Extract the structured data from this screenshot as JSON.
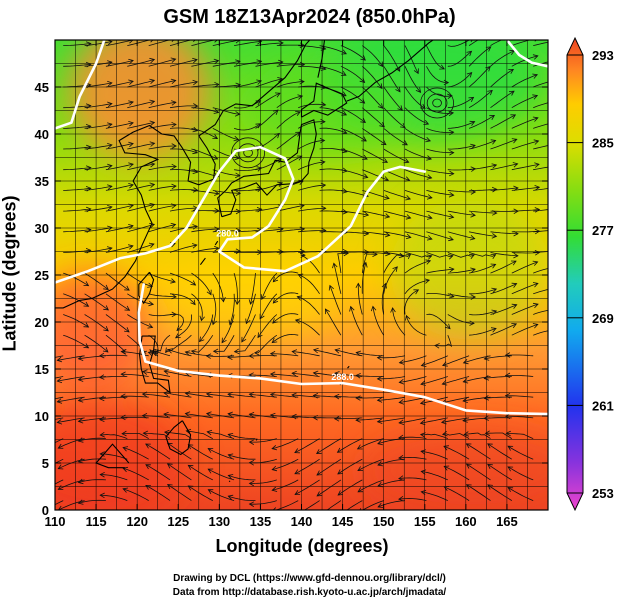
{
  "figure": {
    "title": "GSM 18Z13Apr2024 (850.0hPa)",
    "credits": [
      "Drawing by DCL (https://www.gfd-dennou.org/library/dcl/)",
      "Data from http://database.rish.kyoto-u.ac.jp/arch/jmadata/"
    ]
  },
  "chart_data": {
    "type": "heatmap",
    "title": "GSM 18Z13Apr2024 (850.0hPa)",
    "xlabel": "Longitude (degrees)",
    "ylabel": "Latitude  (degrees)",
    "xlim": [
      110,
      170
    ],
    "ylim": [
      0,
      50
    ],
    "x_ticks": [
      110,
      115,
      120,
      125,
      130,
      135,
      140,
      145,
      150,
      155,
      160,
      165
    ],
    "y_ticks": [
      0,
      5,
      10,
      15,
      20,
      25,
      30,
      35,
      40,
      45
    ],
    "grid": true,
    "colorbar": {
      "ticks": [
        253,
        261,
        269,
        277,
        285,
        293
      ],
      "range": [
        253,
        293
      ],
      "colormap": [
        "#ee44cc",
        "#6633dd",
        "#2244ee",
        "#11aaee",
        "#22ccaa",
        "#33dd33",
        "#88dd11",
        "#ccdd00",
        "#ffcc00",
        "#ff8822",
        "#ee4422"
      ]
    },
    "contours": [
      {
        "value": 280.0,
        "label": "280.0",
        "color": "#ffffff",
        "path": [
          [
            110,
            24.2
          ],
          [
            114,
            25.4
          ],
          [
            118,
            26.8
          ],
          [
            121,
            27.3
          ],
          [
            124,
            28.1
          ],
          [
            126,
            30.0
          ],
          [
            128,
            33.0
          ],
          [
            130,
            36.0
          ],
          [
            132,
            38.2
          ],
          [
            135,
            38.6
          ],
          [
            138,
            37.4
          ],
          [
            139,
            35.2
          ],
          [
            138,
            33.0
          ],
          [
            136,
            30.2
          ],
          [
            134,
            29.0
          ],
          [
            131,
            28.8
          ],
          [
            130,
            27.5
          ],
          [
            133,
            25.8
          ],
          [
            138,
            25.4
          ],
          [
            142,
            27.0
          ],
          [
            146,
            30.2
          ],
          [
            148,
            33.8
          ],
          [
            150,
            36.0
          ],
          [
            152,
            36.5
          ],
          [
            155,
            36.0
          ]
        ]
      },
      {
        "value": 288.0,
        "label": "288.0",
        "color": "#ffffff",
        "path": [
          [
            120.8,
            24.0
          ],
          [
            120.2,
            21.0
          ],
          [
            120.3,
            18.0
          ],
          [
            121,
            15.8
          ],
          [
            125,
            14.8
          ],
          [
            130,
            14.3
          ],
          [
            135,
            14.0
          ],
          [
            140,
            13.4
          ],
          [
            145,
            13.5
          ],
          [
            150,
            12.8
          ],
          [
            155,
            12.0
          ],
          [
            160,
            10.6
          ],
          [
            165,
            10.3
          ],
          [
            170,
            10.2
          ]
        ]
      },
      {
        "value": 280.0,
        "label": "",
        "color": "#ffffff",
        "path": [
          [
            110,
            40.6
          ],
          [
            112,
            41.2
          ],
          [
            113,
            44.0
          ],
          [
            115,
            47.5
          ],
          [
            116,
            50.0
          ]
        ]
      },
      {
        "value": 280.0,
        "label": "",
        "color": "#ffffff",
        "path": [
          [
            165,
            50.0
          ],
          [
            166.5,
            48.4
          ],
          [
            168,
            47.6
          ],
          [
            170,
            47.2
          ]
        ]
      }
    ],
    "annotations": [
      {
        "type": "cyclonic_vortex",
        "lon": 156.5,
        "lat": 43.3
      },
      {
        "type": "cyclonic_vortex",
        "lon": 133.5,
        "lat": 38.0
      }
    ],
    "fields": "air temperature (K) shading with wind streamlines"
  }
}
